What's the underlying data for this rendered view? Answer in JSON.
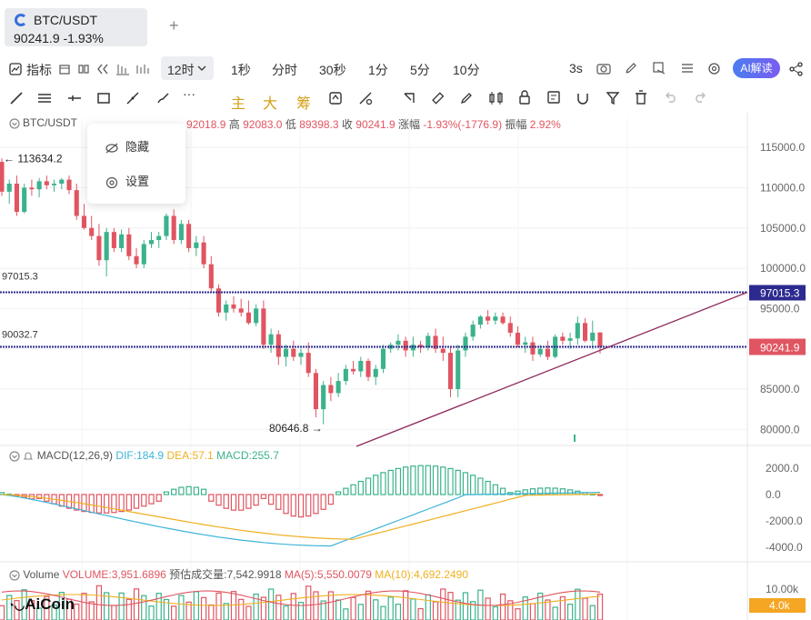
{
  "tab": {
    "symbol": "BTC/USDT",
    "price_change": "90241.9  -1.93%"
  },
  "add_tab": "+",
  "toolbar": {
    "indicators": "指标",
    "timeframe_selected": "12时",
    "timeframes": [
      "1秒",
      "分时",
      "30秒",
      "1分",
      "5分",
      "10分"
    ],
    "refresh": "3s",
    "ai_button": "AI解读"
  },
  "drawing_levels": [
    "主",
    "大",
    "筹"
  ],
  "ohlc_header": {
    "symbol": "BTC/USDT",
    "text_hidden_prefix": "0",
    "open": "92018.9",
    "high_label": "高",
    "high": "92083.0",
    "low_label": "低",
    "low": "89398.3",
    "close_label": "收",
    "close": "90241.9",
    "chg_label": "涨幅",
    "chg": "-1.93%(-1776.9)",
    "amp_label": "振幅",
    "amp": "2.92%"
  },
  "context_menu": {
    "hide": "隐藏",
    "settings": "设置"
  },
  "price_axis": [
    "115000.0",
    "110000.0",
    "105000.0",
    "100000.0",
    "95000.0",
    "85000.0",
    "80000.0"
  ],
  "markers": {
    "high": "← 113634.2",
    "low": "80646.8 →",
    "line1_left": "97015.3",
    "line2_left": "90032.7",
    "line1_tag": "97015.3",
    "current_tag": "90241.9"
  },
  "macd": {
    "label": "MACD(12,26,9)",
    "dif": "DIF:184.9",
    "dea": "DEA:57.1",
    "macd": "MACD:255.7",
    "axis": [
      "2000.0",
      "0.0",
      "-2000.0",
      "-4000.0"
    ]
  },
  "volume": {
    "label": "Volume",
    "vol": "VOLUME:3,951.6896",
    "est": "预估成交量:7,542.9918",
    "ma5": "MA(5):5,550.0079",
    "ma10": "MA(10):4,692.2490",
    "axis_top": "10.00k",
    "tag": "4.0k"
  },
  "brand": "AiCoin",
  "colors": {
    "up": "#3bb28c",
    "down": "#e05561",
    "line": "#2c2a8f",
    "trend": "#8e2a5c",
    "dif": "#3db5d8",
    "dea": "#f0b020"
  },
  "chart_data": {
    "type": "candlestick",
    "ylim": [
      78000,
      117500
    ],
    "candles": [
      [
        113200,
        113634,
        109000,
        109500
      ],
      [
        109500,
        111000,
        108000,
        110500
      ],
      [
        110500,
        111500,
        106500,
        107000
      ],
      [
        107000,
        110500,
        106800,
        110000
      ],
      [
        110000,
        111000,
        109000,
        109800
      ],
      [
        109800,
        111200,
        108800,
        110800
      ],
      [
        110800,
        111500,
        109800,
        110300
      ],
      [
        110300,
        111000,
        109500,
        110500
      ],
      [
        110500,
        111200,
        109800,
        111000
      ],
      [
        111000,
        111500,
        109200,
        109700
      ],
      [
        109700,
        110500,
        106000,
        106500
      ],
      [
        106500,
        108000,
        104800,
        105000
      ],
      [
        105000,
        106500,
        103500,
        104000
      ],
      [
        104000,
        105500,
        100300,
        101000
      ],
      [
        101000,
        105000,
        99000,
        104500
      ],
      [
        104500,
        105000,
        102000,
        102500
      ],
      [
        102500,
        104800,
        102000,
        104200
      ],
      [
        104200,
        105000,
        101000,
        101500
      ],
      [
        101500,
        102500,
        100000,
        100500
      ],
      [
        100500,
        103500,
        100000,
        103000
      ],
      [
        103000,
        104500,
        102500,
        103500
      ],
      [
        103500,
        104500,
        102500,
        104000
      ],
      [
        104000,
        106800,
        103500,
        106500
      ],
      [
        106500,
        107300,
        103000,
        103500
      ],
      [
        103500,
        106000,
        103000,
        105500
      ],
      [
        105500,
        106000,
        102000,
        102500
      ],
      [
        102500,
        104000,
        101500,
        103200
      ],
      [
        103200,
        104000,
        100000,
        100500
      ],
      [
        100500,
        101500,
        97000,
        97500
      ],
      [
        97500,
        98000,
        94000,
        94500
      ],
      [
        94500,
        96000,
        93500,
        95500
      ],
      [
        95500,
        96500,
        94500,
        95000
      ],
      [
        95000,
        96200,
        94000,
        94500
      ],
      [
        94500,
        96000,
        93000,
        93200
      ],
      [
        93200,
        95500,
        92800,
        95000
      ],
      [
        95000,
        96000,
        90000,
        90500
      ],
      [
        90500,
        92500,
        89500,
        91800
      ],
      [
        91800,
        92300,
        88000,
        89000
      ],
      [
        89000,
        90500,
        87800,
        90000
      ],
      [
        90000,
        91000,
        88500,
        89000
      ],
      [
        89000,
        90000,
        88000,
        89500
      ],
      [
        89500,
        90800,
        86500,
        87000
      ],
      [
        87000,
        87500,
        81500,
        82500
      ],
      [
        82500,
        86000,
        80646,
        85500
      ],
      [
        85500,
        86500,
        83500,
        84500
      ],
      [
        84500,
        87000,
        84000,
        86000
      ],
      [
        86000,
        88000,
        85500,
        87500
      ],
      [
        87500,
        88500,
        86800,
        87200
      ],
      [
        87200,
        89000,
        86500,
        88500
      ],
      [
        88500,
        88800,
        86000,
        86500
      ],
      [
        86500,
        88000,
        85500,
        87500
      ],
      [
        87500,
        90500,
        87000,
        90000
      ],
      [
        90000,
        90800,
        89500,
        90500
      ],
      [
        90500,
        91800,
        89800,
        91000
      ],
      [
        91000,
        91500,
        89000,
        89800
      ],
      [
        89800,
        91500,
        89000,
        90500
      ],
      [
        90500,
        91000,
        89500,
        90200
      ],
      [
        90200,
        92000,
        89800,
        91600
      ],
      [
        91600,
        92500,
        89500,
        90000
      ],
      [
        90000,
        91500,
        88500,
        89500
      ],
      [
        89500,
        90200,
        84000,
        85000
      ],
      [
        85000,
        90500,
        84000,
        89800
      ],
      [
        89800,
        92000,
        89000,
        91500
      ],
      [
        91500,
        93500,
        91000,
        93000
      ],
      [
        93000,
        94200,
        92500,
        94000
      ],
      [
        94000,
        94800,
        93000,
        93500
      ],
      [
        93500,
        94500,
        93000,
        94000
      ],
      [
        94000,
        94500,
        93000,
        93200
      ],
      [
        93200,
        94000,
        91500,
        92000
      ],
      [
        92000,
        92800,
        90200,
        90500
      ],
      [
        90500,
        91500,
        89500,
        90800
      ],
      [
        90800,
        91500,
        88500,
        89300
      ],
      [
        89300,
        90500,
        89000,
        90000
      ],
      [
        90000,
        91000,
        88600,
        89000
      ],
      [
        89000,
        91800,
        88800,
        91500
      ],
      [
        91500,
        92000,
        90500,
        91000
      ],
      [
        91000,
        92000,
        90000,
        91300
      ],
      [
        91300,
        94000,
        90500,
        93200
      ],
      [
        93200,
        93800,
        90800,
        91000
      ],
      [
        91000,
        93500,
        90000,
        92000
      ],
      [
        92018,
        92083,
        89398,
        90241
      ]
    ]
  }
}
